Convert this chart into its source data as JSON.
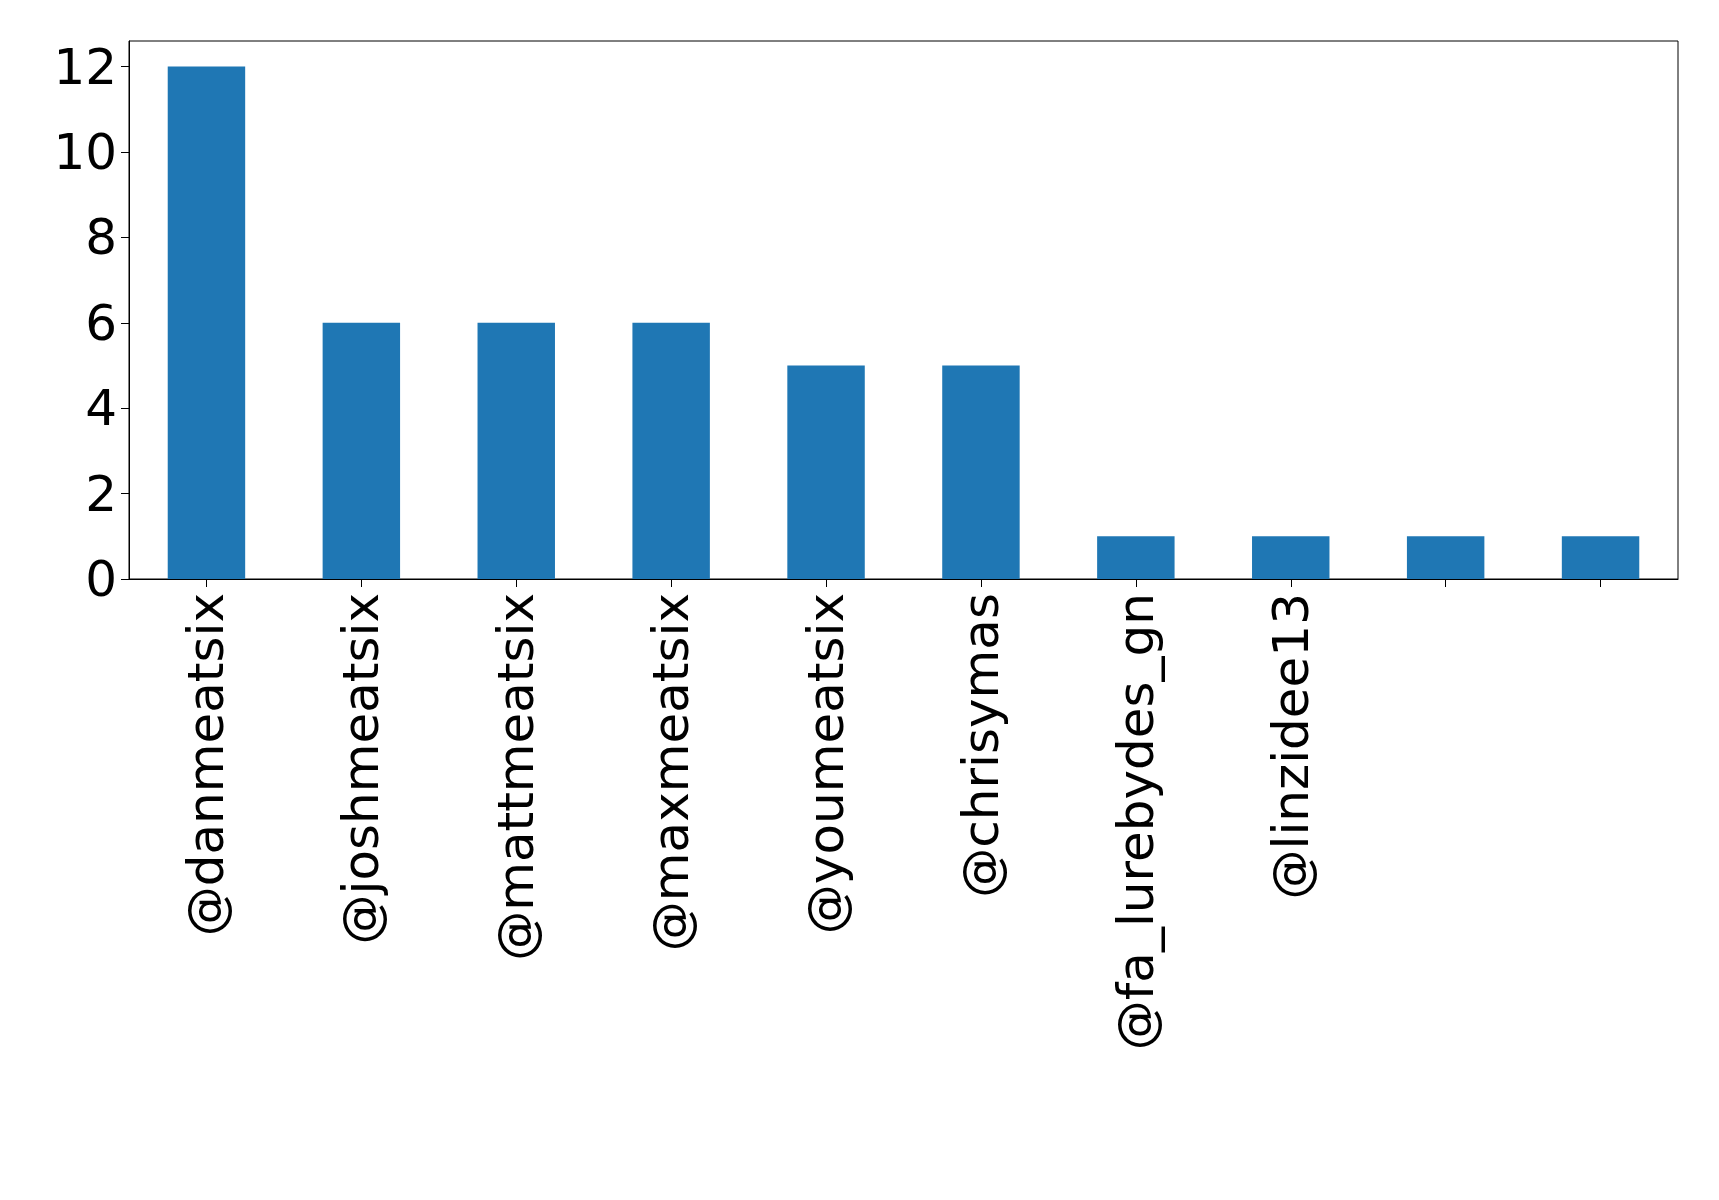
{
  "chart_data": {
    "type": "bar",
    "categories": [
      "@danmeatsix",
      "@joshmeatsix",
      "@mattmeatsix",
      "@maxmeatsix",
      "@youmeatsix",
      "@chrisymas",
      "@fa_lurebydes_gn",
      "@linzidee13",
      null,
      null
    ],
    "values": [
      12,
      6,
      6,
      6,
      5,
      5,
      1,
      1,
      1,
      1
    ],
    "color": "#1f77b4",
    "ylim": [
      0,
      12.6
    ],
    "yticks": [
      0,
      2,
      4,
      6,
      8,
      10,
      12
    ],
    "grid": false
  }
}
